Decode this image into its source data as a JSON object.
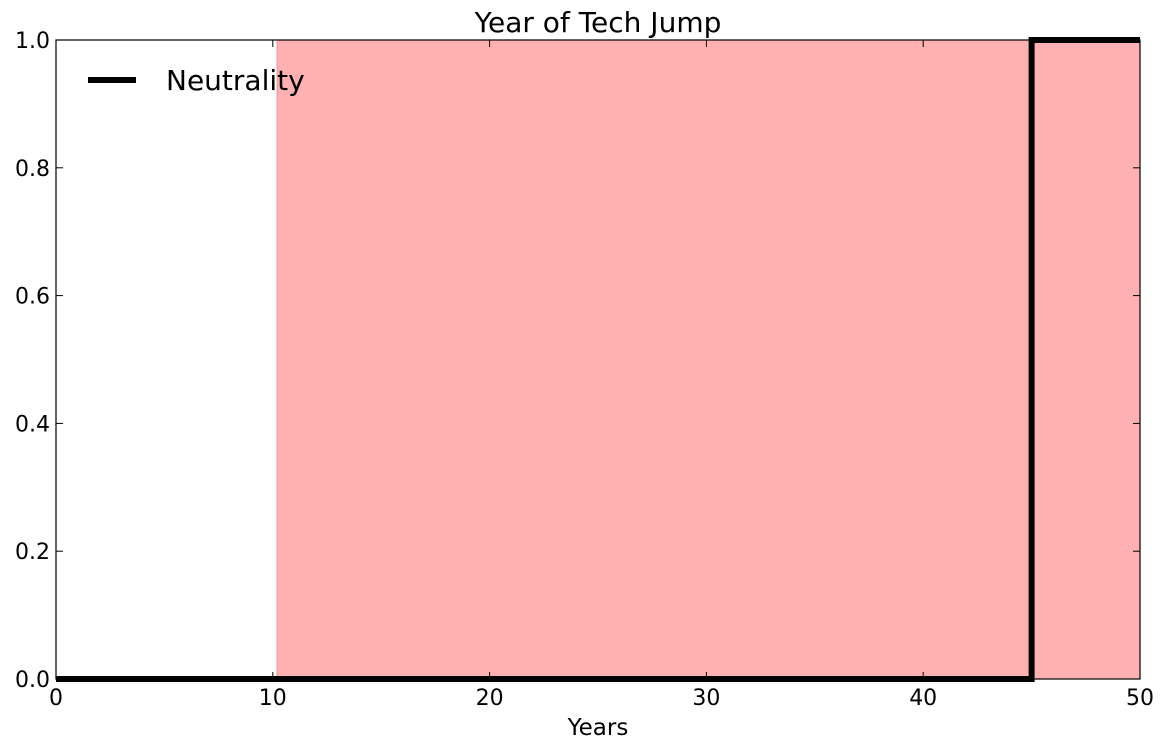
{
  "chart_data": {
    "type": "line",
    "title": "Year of Tech Jump",
    "xlabel": "Years",
    "ylabel": "",
    "xlim": [
      0,
      50
    ],
    "ylim": [
      0.0,
      1.0
    ],
    "x_ticks": [
      0,
      10,
      20,
      30,
      40,
      50
    ],
    "x_tick_labels": [
      "0",
      "10",
      "20",
      "30",
      "40",
      "50"
    ],
    "y_ticks": [
      0.0,
      0.2,
      0.4,
      0.6,
      0.8,
      1.0
    ],
    "y_tick_labels": [
      "0.0",
      "0.2",
      "0.4",
      "0.6",
      "0.8",
      "1.0"
    ],
    "grid": false,
    "legend_position": "top-left",
    "shaded_region": {
      "x_start": 10.2,
      "x_end": 50,
      "color": "#ffb1b1"
    },
    "series": [
      {
        "name": "Neutrality",
        "color": "#000000",
        "step": true,
        "x": [
          0,
          45,
          45,
          50
        ],
        "y": [
          0,
          0,
          1,
          1
        ]
      }
    ]
  }
}
